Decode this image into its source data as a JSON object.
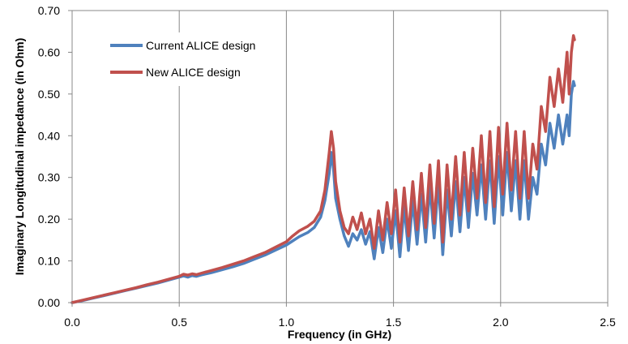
{
  "chart_data": {
    "type": "line",
    "xlabel": "Frequency (in GHz)",
    "ylabel": "Imaginary Longitudinal impedance (in Ohm)",
    "xlim": [
      0.0,
      2.5
    ],
    "ylim": [
      0.0,
      0.7
    ],
    "x_ticks": [
      "0.0",
      "0.5",
      "1.0",
      "1.5",
      "2.0",
      "2.5"
    ],
    "y_ticks": [
      "0.00",
      "0.10",
      "0.20",
      "0.30",
      "0.40",
      "0.50",
      "0.60",
      "0.70"
    ],
    "grid": "vertical",
    "legend_position": "top-left",
    "series": [
      {
        "name": "Current ALICE design",
        "color": "#4F81BD",
        "points": [
          [
            0.0,
            0.0
          ],
          [
            0.05,
            0.005
          ],
          [
            0.1,
            0.011
          ],
          [
            0.15,
            0.017
          ],
          [
            0.2,
            0.023
          ],
          [
            0.25,
            0.029
          ],
          [
            0.3,
            0.035
          ],
          [
            0.35,
            0.041
          ],
          [
            0.4,
            0.047
          ],
          [
            0.45,
            0.054
          ],
          [
            0.5,
            0.061
          ],
          [
            0.52,
            0.064
          ],
          [
            0.54,
            0.061
          ],
          [
            0.56,
            0.065
          ],
          [
            0.58,
            0.063
          ],
          [
            0.6,
            0.066
          ],
          [
            0.65,
            0.072
          ],
          [
            0.7,
            0.079
          ],
          [
            0.75,
            0.086
          ],
          [
            0.8,
            0.094
          ],
          [
            0.85,
            0.104
          ],
          [
            0.9,
            0.114
          ],
          [
            0.95,
            0.126
          ],
          [
            1.0,
            0.138
          ],
          [
            1.03,
            0.148
          ],
          [
            1.06,
            0.158
          ],
          [
            1.1,
            0.168
          ],
          [
            1.13,
            0.18
          ],
          [
            1.16,
            0.205
          ],
          [
            1.18,
            0.245
          ],
          [
            1.2,
            0.31
          ],
          [
            1.21,
            0.36
          ],
          [
            1.22,
            0.32
          ],
          [
            1.23,
            0.25
          ],
          [
            1.25,
            0.2
          ],
          [
            1.27,
            0.16
          ],
          [
            1.29,
            0.135
          ],
          [
            1.31,
            0.165
          ],
          [
            1.33,
            0.15
          ],
          [
            1.35,
            0.175
          ],
          [
            1.37,
            0.14
          ],
          [
            1.39,
            0.17
          ],
          [
            1.41,
            0.105
          ],
          [
            1.43,
            0.18
          ],
          [
            1.45,
            0.12
          ],
          [
            1.47,
            0.2
          ],
          [
            1.49,
            0.13
          ],
          [
            1.51,
            0.22
          ],
          [
            1.53,
            0.11
          ],
          [
            1.55,
            0.23
          ],
          [
            1.57,
            0.125
          ],
          [
            1.59,
            0.245
          ],
          [
            1.61,
            0.14
          ],
          [
            1.63,
            0.26
          ],
          [
            1.65,
            0.145
          ],
          [
            1.67,
            0.28
          ],
          [
            1.69,
            0.155
          ],
          [
            1.71,
            0.29
          ],
          [
            1.73,
            0.115
          ],
          [
            1.75,
            0.27
          ],
          [
            1.77,
            0.16
          ],
          [
            1.79,
            0.29
          ],
          [
            1.81,
            0.17
          ],
          [
            1.83,
            0.3
          ],
          [
            1.85,
            0.18
          ],
          [
            1.87,
            0.31
          ],
          [
            1.89,
            0.21
          ],
          [
            1.91,
            0.33
          ],
          [
            1.93,
            0.2
          ],
          [
            1.95,
            0.34
          ],
          [
            1.97,
            0.19
          ],
          [
            1.99,
            0.35
          ],
          [
            2.01,
            0.21
          ],
          [
            2.03,
            0.36
          ],
          [
            2.05,
            0.22
          ],
          [
            2.07,
            0.34
          ],
          [
            2.09,
            0.2
          ],
          [
            2.11,
            0.34
          ],
          [
            2.13,
            0.2
          ],
          [
            2.15,
            0.3
          ],
          [
            2.17,
            0.26
          ],
          [
            2.19,
            0.38
          ],
          [
            2.21,
            0.33
          ],
          [
            2.23,
            0.43
          ],
          [
            2.25,
            0.37
          ],
          [
            2.27,
            0.45
          ],
          [
            2.29,
            0.38
          ],
          [
            2.31,
            0.45
          ],
          [
            2.32,
            0.4
          ],
          [
            2.33,
            0.5
          ],
          [
            2.34,
            0.53
          ],
          [
            2.345,
            0.52
          ]
        ]
      },
      {
        "name": "New ALICE design",
        "color": "#C0504D",
        "points": [
          [
            0.0,
            0.0
          ],
          [
            0.05,
            0.006
          ],
          [
            0.1,
            0.012
          ],
          [
            0.15,
            0.018
          ],
          [
            0.2,
            0.024
          ],
          [
            0.25,
            0.03
          ],
          [
            0.3,
            0.036
          ],
          [
            0.35,
            0.043
          ],
          [
            0.4,
            0.049
          ],
          [
            0.45,
            0.056
          ],
          [
            0.5,
            0.063
          ],
          [
            0.52,
            0.068
          ],
          [
            0.54,
            0.066
          ],
          [
            0.56,
            0.069
          ],
          [
            0.58,
            0.067
          ],
          [
            0.6,
            0.07
          ],
          [
            0.65,
            0.077
          ],
          [
            0.7,
            0.084
          ],
          [
            0.75,
            0.092
          ],
          [
            0.8,
            0.1
          ],
          [
            0.85,
            0.11
          ],
          [
            0.9,
            0.12
          ],
          [
            0.95,
            0.133
          ],
          [
            1.0,
            0.146
          ],
          [
            1.03,
            0.16
          ],
          [
            1.06,
            0.172
          ],
          [
            1.1,
            0.183
          ],
          [
            1.13,
            0.195
          ],
          [
            1.16,
            0.22
          ],
          [
            1.18,
            0.27
          ],
          [
            1.2,
            0.36
          ],
          [
            1.21,
            0.41
          ],
          [
            1.22,
            0.37
          ],
          [
            1.23,
            0.29
          ],
          [
            1.25,
            0.22
          ],
          [
            1.27,
            0.18
          ],
          [
            1.29,
            0.165
          ],
          [
            1.31,
            0.205
          ],
          [
            1.33,
            0.175
          ],
          [
            1.35,
            0.215
          ],
          [
            1.37,
            0.165
          ],
          [
            1.39,
            0.2
          ],
          [
            1.41,
            0.13
          ],
          [
            1.43,
            0.22
          ],
          [
            1.45,
            0.15
          ],
          [
            1.47,
            0.24
          ],
          [
            1.49,
            0.165
          ],
          [
            1.51,
            0.27
          ],
          [
            1.53,
            0.145
          ],
          [
            1.55,
            0.275
          ],
          [
            1.57,
            0.16
          ],
          [
            1.59,
            0.29
          ],
          [
            1.61,
            0.175
          ],
          [
            1.63,
            0.31
          ],
          [
            1.65,
            0.18
          ],
          [
            1.67,
            0.33
          ],
          [
            1.69,
            0.19
          ],
          [
            1.71,
            0.34
          ],
          [
            1.73,
            0.145
          ],
          [
            1.75,
            0.33
          ],
          [
            1.77,
            0.2
          ],
          [
            1.79,
            0.35
          ],
          [
            1.81,
            0.21
          ],
          [
            1.83,
            0.36
          ],
          [
            1.85,
            0.22
          ],
          [
            1.87,
            0.37
          ],
          [
            1.89,
            0.25
          ],
          [
            1.91,
            0.4
          ],
          [
            1.93,
            0.24
          ],
          [
            1.95,
            0.41
          ],
          [
            1.97,
            0.23
          ],
          [
            1.99,
            0.42
          ],
          [
            2.01,
            0.26
          ],
          [
            2.03,
            0.43
          ],
          [
            2.05,
            0.27
          ],
          [
            2.07,
            0.41
          ],
          [
            2.09,
            0.25
          ],
          [
            2.11,
            0.41
          ],
          [
            2.13,
            0.25
          ],
          [
            2.15,
            0.38
          ],
          [
            2.17,
            0.32
          ],
          [
            2.19,
            0.47
          ],
          [
            2.21,
            0.41
          ],
          [
            2.23,
            0.54
          ],
          [
            2.25,
            0.47
          ],
          [
            2.27,
            0.56
          ],
          [
            2.29,
            0.48
          ],
          [
            2.31,
            0.6
          ],
          [
            2.32,
            0.5
          ],
          [
            2.33,
            0.6
          ],
          [
            2.34,
            0.64
          ],
          [
            2.345,
            0.63
          ]
        ]
      }
    ]
  }
}
